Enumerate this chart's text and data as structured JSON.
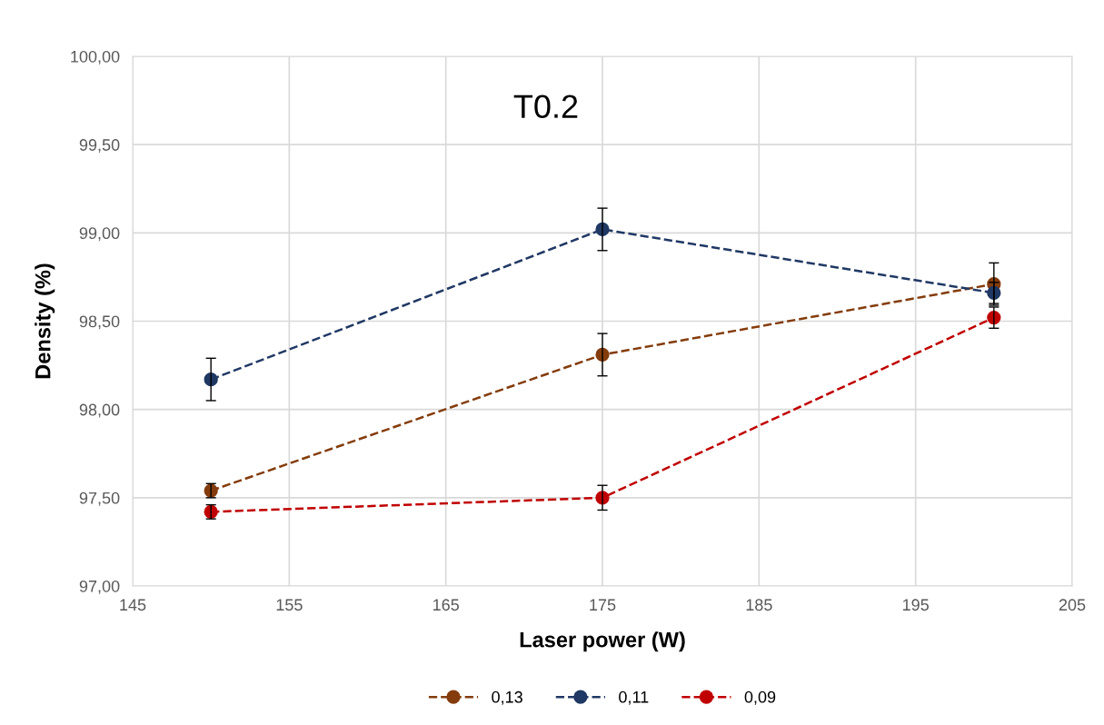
{
  "chart_data": {
    "type": "line",
    "title": "T0.2",
    "xlabel": "Laser power (W)",
    "ylabel": "Density (%)",
    "x": [
      150,
      175,
      200
    ],
    "series": [
      {
        "name": "0,13",
        "color": "#843c0c",
        "values": [
          97.54,
          98.31,
          98.71
        ],
        "errors": [
          0.04,
          0.12,
          0.12
        ]
      },
      {
        "name": "0,11",
        "color": "#203864",
        "values": [
          98.17,
          99.02,
          98.66
        ],
        "errors": [
          0.12,
          0.12,
          0.06
        ]
      },
      {
        "name": "0,09",
        "color": "#c00000",
        "values": [
          97.42,
          97.5,
          98.52
        ],
        "errors": [
          0.04,
          0.07,
          0.06
        ]
      }
    ],
    "xlim": [
      145,
      205
    ],
    "xticks": [
      145,
      155,
      165,
      175,
      185,
      195,
      205
    ],
    "ylim": [
      97,
      100
    ],
    "yticks": [
      {
        "value": 97,
        "label": "97,00"
      },
      {
        "value": 97.5,
        "label": "97,50"
      },
      {
        "value": 98,
        "label": "98,00"
      },
      {
        "value": 98.5,
        "label": "98,50"
      },
      {
        "value": 99,
        "label": "99,00"
      },
      {
        "value": 99.5,
        "label": "99,50"
      },
      {
        "value": 100,
        "label": "100,00"
      }
    ],
    "grid": true,
    "legend": "bottom",
    "marker": "circle",
    "line_style": "dashed"
  }
}
